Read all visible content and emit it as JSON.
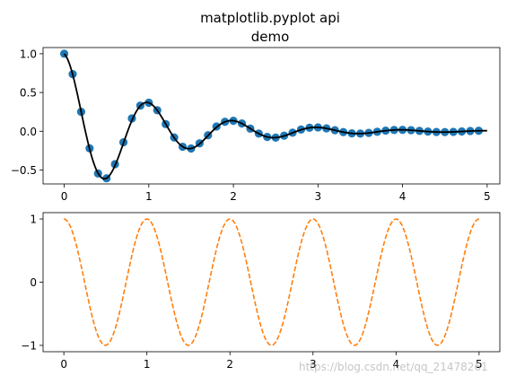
{
  "chart_data": [
    {
      "type": "scatter",
      "title": "matplotlib.pyplot api\ndemo",
      "title_lines": [
        "matplotlib.pyplot api",
        "demo"
      ],
      "xlabel": "",
      "ylabel": "",
      "xlim": [
        -0.25,
        5.15
      ],
      "ylim": [
        -0.68,
        1.08
      ],
      "xticks": [
        0,
        1,
        2,
        3,
        4,
        5
      ],
      "yticks": [
        1.0,
        0.5,
        0.0,
        -0.5
      ],
      "ytick_labels": [
        "1.0",
        "0.5",
        "0.0",
        "−0.5"
      ],
      "grid": false,
      "colors": {
        "markers": "#1f77b4",
        "line": "#000000"
      },
      "series": [
        {
          "kind": "markers",
          "x": [
            0.0,
            0.1,
            0.2,
            0.3,
            0.4,
            0.5,
            0.6,
            0.7,
            0.8,
            0.9,
            1.0,
            1.1,
            1.2,
            1.3,
            1.4,
            1.5,
            1.6,
            1.7,
            1.8,
            1.9,
            2.0,
            2.1,
            2.2,
            2.3,
            2.4,
            2.5,
            2.6,
            2.7,
            2.8,
            2.9,
            3.0,
            3.1,
            3.2,
            3.3,
            3.4,
            3.5,
            3.6,
            3.7,
            3.8,
            3.9,
            4.0,
            4.1,
            4.2,
            4.3,
            4.4,
            4.5,
            4.6,
            4.7,
            4.8,
            4.9
          ],
          "values": [
            1.0,
            0.737,
            0.251,
            -0.221,
            -0.545,
            -0.607,
            -0.425,
            -0.143,
            0.166,
            0.331,
            0.368,
            0.271,
            0.092,
            -0.081,
            -0.2,
            -0.223,
            -0.156,
            -0.052,
            0.061,
            0.122,
            0.135,
            0.1,
            0.034,
            -0.03,
            -0.074,
            -0.082,
            -0.057,
            -0.019,
            0.022,
            0.045,
            0.05,
            0.037,
            0.013,
            -0.011,
            -0.027,
            -0.03,
            -0.021,
            -0.007,
            0.008,
            0.016,
            0.018,
            0.014,
            0.005,
            -0.004,
            -0.01,
            -0.011,
            -0.008,
            -0.003,
            0.003,
            0.006
          ]
        },
        {
          "kind": "line",
          "function": "exp(-t)*cos(2*pi*t)",
          "x_range": [
            0,
            5
          ],
          "x_step": 0.02
        }
      ]
    },
    {
      "type": "line",
      "xlim": [
        -0.25,
        5.25
      ],
      "ylim": [
        -1.1,
        1.1
      ],
      "xticks": [
        0,
        1,
        2,
        3,
        4,
        5
      ],
      "yticks": [
        1,
        0,
        -1
      ],
      "ytick_labels": [
        "1",
        "0",
        "−1"
      ],
      "grid": false,
      "colors": {
        "line": "#ff7f0e"
      },
      "series": [
        {
          "kind": "line",
          "style": "dashed",
          "function": "cos(2*pi*t)",
          "x_range": [
            0,
            5
          ],
          "x_step": 0.02
        }
      ]
    }
  ],
  "watermark": "https://blog.csdn.net/qq_21478261"
}
